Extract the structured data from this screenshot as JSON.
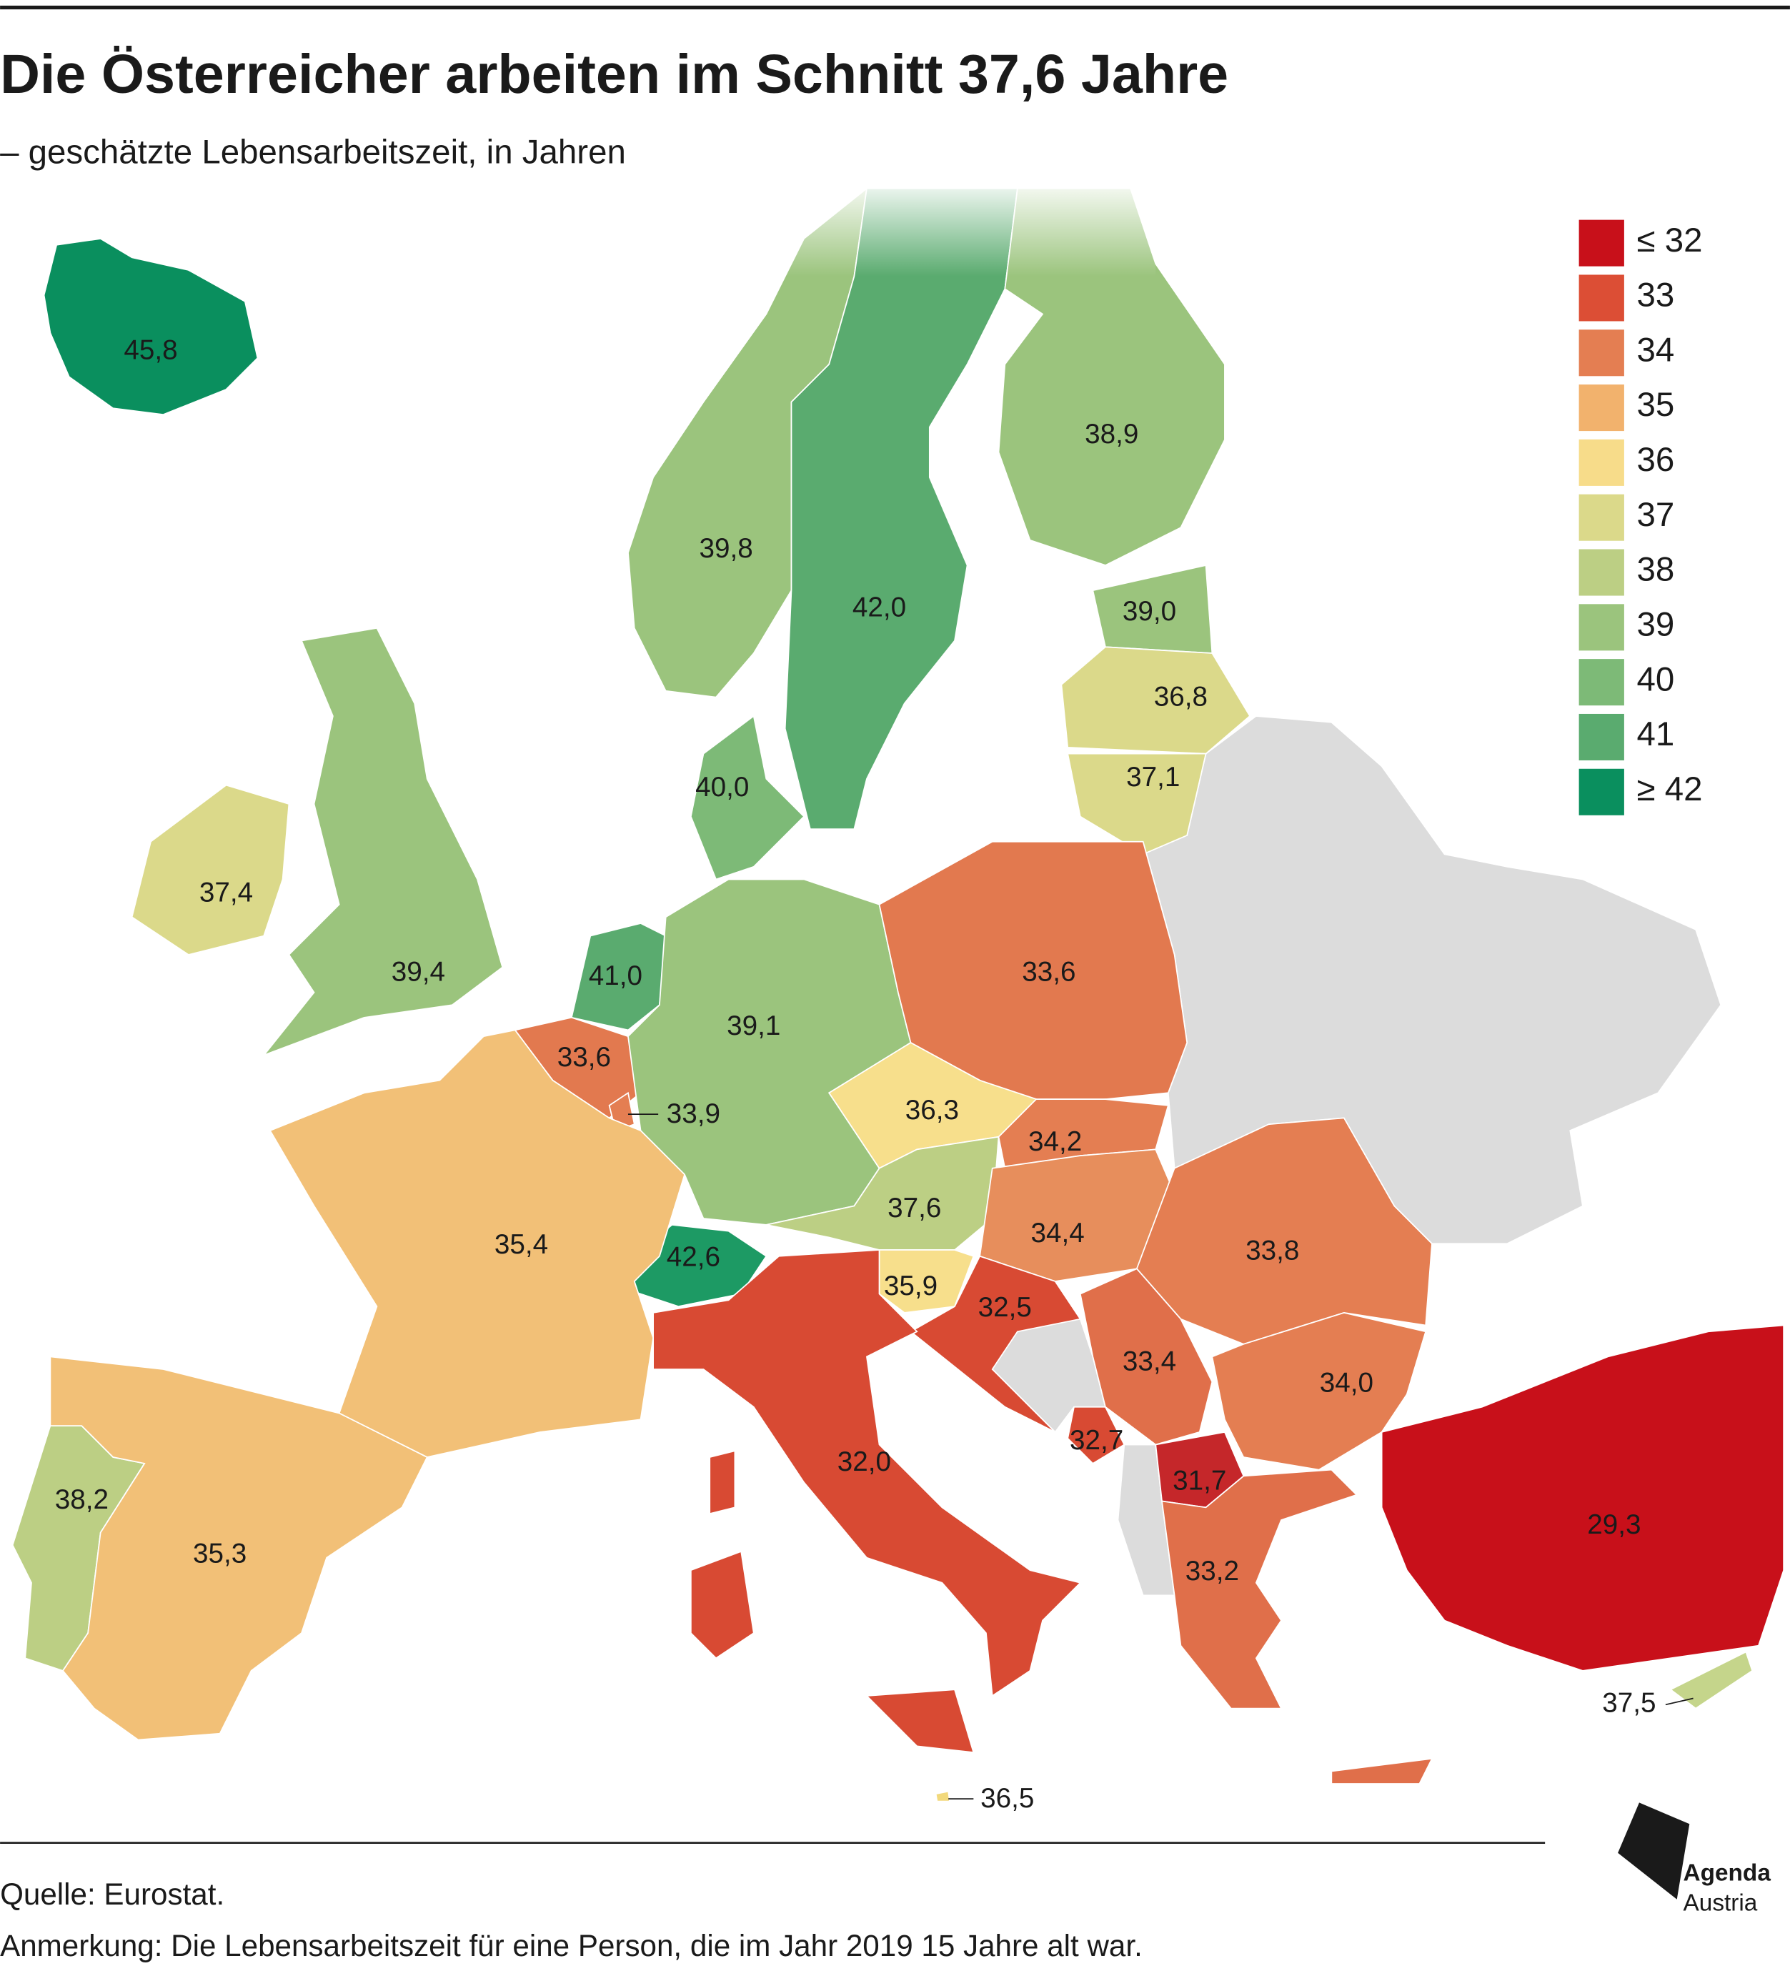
{
  "chart_data": {
    "type": "choropleth",
    "title": "Die Österreicher arbeiten im Schnitt 37,6 Jahre",
    "subtitle": "– geschätzte Lebensarbeitszeit, in Jahren",
    "values": [
      45.8,
      39.8,
      42.0,
      38.9,
      39.0,
      36.8,
      37.1,
      40.0,
      37.4,
      39.4,
      41.0,
      33.6,
      33.9,
      39.1,
      33.6,
      36.3,
      34.2,
      37.6,
      34.4,
      33.8,
      42.6,
      35.4,
      35.9,
      32.5,
      33.4,
      34.0,
      32.0,
      32.7,
      31.7,
      33.2,
      29.3,
      38.2,
      35.3,
      37.5,
      36.5
    ],
    "value_labels": [
      "45,8",
      "39,8",
      "42,0",
      "38,9",
      "39,0",
      "36,8",
      "37,1",
      "40,0",
      "37,4",
      "39,4",
      "41,0",
      "33,6",
      "33,9",
      "39,1",
      "33,6",
      "36,3",
      "34,2",
      "37,6",
      "34,4",
      "33,8",
      "42,6",
      "35,4",
      "35,9",
      "32,5",
      "33,4",
      "34,0",
      "32,0",
      "32,7",
      "31,7",
      "33,2",
      "29,3",
      "38,2",
      "35,3",
      "37,5",
      "36,5"
    ],
    "colors": [
      "#0a8f5e",
      "#9bc47d",
      "#5aab6f",
      "#9bc47d",
      "#9bc47d",
      "#dbd98a",
      "#dbd98a",
      "#7dba77",
      "#dbd98a",
      "#9bc47d",
      "#5aab6f",
      "#e2794f",
      "#e47e52",
      "#9bc47d",
      "#e2794f",
      "#f7df8c",
      "#e47e52",
      "#bccf84",
      "#e78e5c",
      "#e47e52",
      "#1d9a64",
      "#f2c077",
      "#f7df8c",
      "#d84a33",
      "#e06f4a",
      "#e47e52",
      "#d84a33",
      "#d84a33",
      "#c5272a",
      "#e06f4a",
      "#c8101a",
      "#bccf84",
      "#f2c077",
      "#c5d58b",
      "#f2d97c"
    ],
    "legend": {
      "labels": [
        "≤ 32",
        "33",
        "34",
        "35",
        "36",
        "37",
        "38",
        "39",
        "40",
        "41",
        "≥ 42"
      ],
      "colors": [
        "#c8101a",
        "#dc4e35",
        "#e47e52",
        "#f2b26d",
        "#f7dc8a",
        "#dbd98a",
        "#bccf84",
        "#9bc47d",
        "#7dba77",
        "#5aab6f",
        "#0a8f5e"
      ]
    },
    "source": "Quelle: Eurostat.",
    "note": "Anmerkung: Die Lebensarbeitszeit für eine Person, die im Jahr 2019 15 Jahre alt war."
  },
  "logo": {
    "line1": "Agenda",
    "line2": "Austria"
  }
}
